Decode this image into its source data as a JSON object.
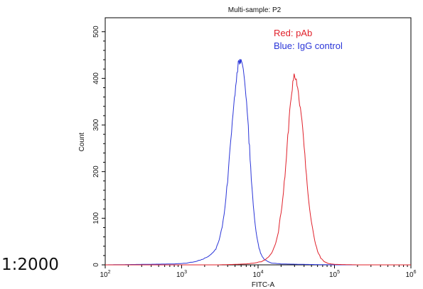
{
  "page": {
    "caption": "1:2000"
  },
  "chart_data": {
    "type": "line",
    "title": "Multi-sample: P2",
    "xlabel": "FITC-A",
    "ylabel": "Count",
    "x_scale": "log",
    "xlim": [
      100,
      1000000
    ],
    "ylim": [
      0,
      530
    ],
    "x_ticks": [
      {
        "value": 100,
        "base": "10",
        "exp": "2"
      },
      {
        "value": 1000,
        "base": "10",
        "exp": "3"
      },
      {
        "value": 10000,
        "base": "10",
        "exp": "4"
      },
      {
        "value": 100000,
        "base": "10",
        "exp": "5"
      },
      {
        "value": 1000000,
        "base": "10",
        "exp": "6"
      }
    ],
    "y_ticks": [
      0,
      100,
      200,
      300,
      400,
      500
    ],
    "y_tick_labels": [
      "0",
      "100",
      "200",
      "300",
      "400",
      "500"
    ],
    "grid": false,
    "legend_position": "top-right",
    "legend": [
      {
        "label": "Red: pAb",
        "color": "#e0202a"
      },
      {
        "label": "Blue: IgG control",
        "color": "#2a35d8"
      }
    ],
    "series": [
      {
        "color": "#2a35d8",
        "points": [
          [
            100,
            0
          ],
          [
            300,
            1
          ],
          [
            800,
            2
          ],
          [
            1200,
            4
          ],
          [
            1600,
            8
          ],
          [
            2000,
            14
          ],
          [
            2400,
            22
          ],
          [
            2800,
            35
          ],
          [
            3100,
            55
          ],
          [
            3400,
            85
          ],
          [
            3700,
            130
          ],
          [
            4000,
            180
          ],
          [
            4300,
            240
          ],
          [
            4600,
            300
          ],
          [
            4900,
            350
          ],
          [
            5200,
            390
          ],
          [
            5500,
            425
          ],
          [
            5800,
            445
          ],
          [
            6100,
            440
          ],
          [
            6400,
            420
          ],
          [
            6800,
            390
          ],
          [
            7200,
            340
          ],
          [
            7600,
            270
          ],
          [
            8000,
            200
          ],
          [
            8500,
            140
          ],
          [
            9000,
            95
          ],
          [
            9600,
            60
          ],
          [
            10300,
            35
          ],
          [
            11000,
            22
          ],
          [
            12000,
            13
          ],
          [
            13500,
            7
          ],
          [
            15000,
            4
          ],
          [
            20000,
            2
          ],
          [
            40000,
            1
          ],
          [
            100000,
            0
          ],
          [
            1000000,
            0
          ]
        ]
      },
      {
        "color": "#e0202a",
        "points": [
          [
            100,
            0
          ],
          [
            3000,
            0
          ],
          [
            5000,
            1
          ],
          [
            7000,
            2
          ],
          [
            9000,
            4
          ],
          [
            11000,
            7
          ],
          [
            12500,
            11
          ],
          [
            14000,
            18
          ],
          [
            15500,
            28
          ],
          [
            17000,
            45
          ],
          [
            18500,
            70
          ],
          [
            20000,
            110
          ],
          [
            21500,
            160
          ],
          [
            23000,
            220
          ],
          [
            24500,
            280
          ],
          [
            26000,
            335
          ],
          [
            27500,
            375
          ],
          [
            29000,
            400
          ],
          [
            31000,
            395
          ],
          [
            33000,
            370
          ],
          [
            35000,
            340
          ],
          [
            37500,
            300
          ],
          [
            40000,
            250
          ],
          [
            43000,
            195
          ],
          [
            46000,
            140
          ],
          [
            50000,
            95
          ],
          [
            55000,
            55
          ],
          [
            60000,
            30
          ],
          [
            66000,
            15
          ],
          [
            73000,
            7
          ],
          [
            82000,
            3
          ],
          [
            100000,
            1
          ],
          [
            200000,
            0
          ],
          [
            1000000,
            0
          ]
        ]
      }
    ]
  }
}
